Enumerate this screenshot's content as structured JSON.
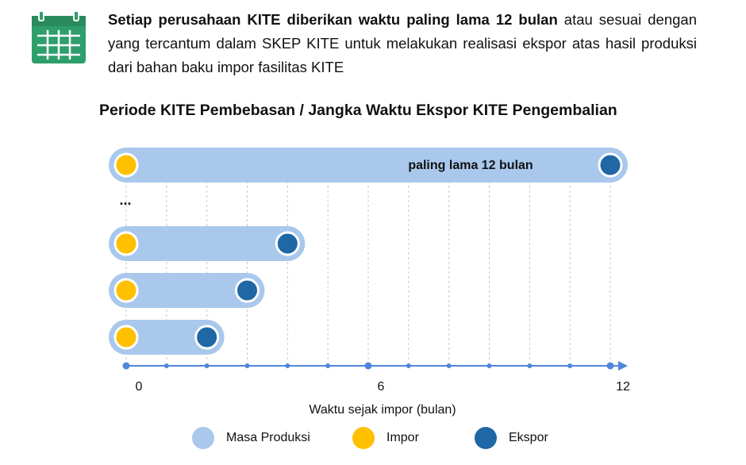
{
  "intro": {
    "bold": "Setiap perusahaan KITE diberikan waktu paling lama 12 bulan",
    "rest": "atau sesuai dengan yang tercantum dalam SKEP KITE untuk melakukan realisasi ekspor atas hasil produksi dari bahan baku impor fasilitas KITE"
  },
  "chart_data": {
    "type": "timeline",
    "title": "Periode KITE Pembebasan / Jangka Waktu Ekspor KITE Pengembalian",
    "xlabel": "Waktu sejak impor (bulan)",
    "xlim": [
      0,
      12
    ],
    "xticks": [
      0,
      6,
      12
    ],
    "minor_xticks": [
      0,
      1,
      2,
      3,
      4,
      5,
      6,
      7,
      8,
      9,
      10,
      11,
      12
    ],
    "grid": true,
    "annotations": [
      "paling lama 12 bulan",
      "..."
    ],
    "series": [
      {
        "name": "Masa Produksi",
        "color": "#a9c8ec"
      },
      {
        "name": "Impor",
        "color": "#ffc000",
        "values": [
          0,
          0,
          0,
          0
        ]
      },
      {
        "name": "Ekspor",
        "color": "#1f67a5",
        "values": [
          12,
          4,
          3,
          2
        ]
      }
    ]
  }
}
